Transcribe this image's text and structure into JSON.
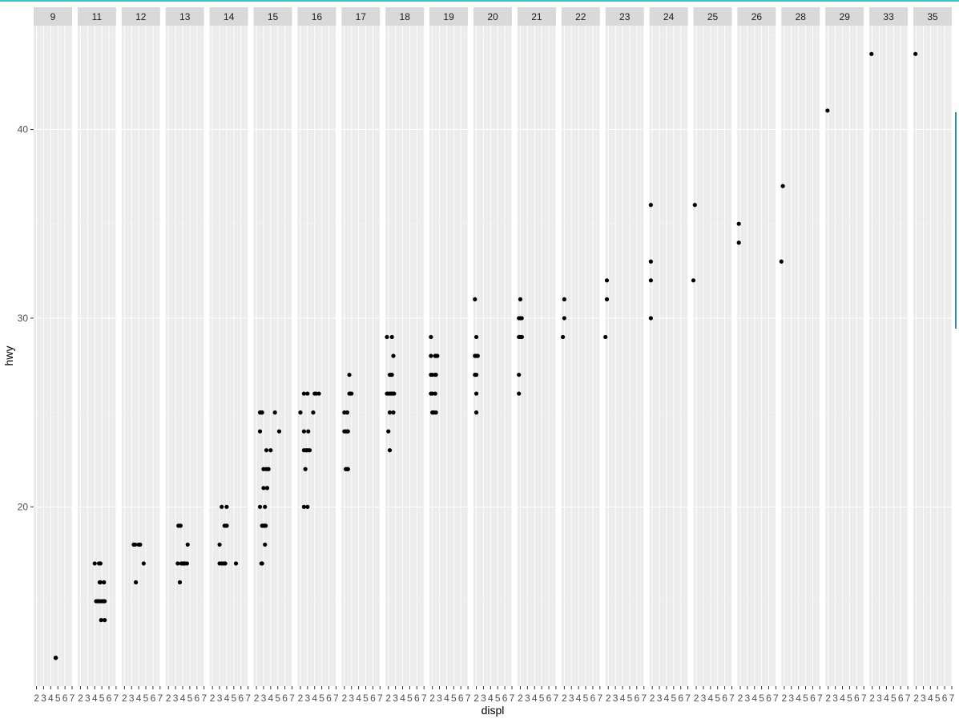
{
  "chart_data": {
    "type": "scatter",
    "facet_by": "cty",
    "xlabel": "displ",
    "ylabel": "hwy",
    "ylim": [
      10.5,
      45.5
    ],
    "xlim": [
      1.6,
      7.0
    ],
    "y_ticks": [
      20,
      30,
      40
    ],
    "x_ticks": [
      2,
      3,
      4,
      5,
      6,
      7
    ],
    "grid": true,
    "panel_background": "#ebebeb",
    "strip_background": "#d9d9d9",
    "point_color": "#000000",
    "facets": [
      {
        "label": "9",
        "points": [
          [
            4.7,
            12
          ],
          [
            4.7,
            12
          ],
          [
            4.7,
            12
          ],
          [
            4.7,
            12
          ],
          [
            4.7,
            12
          ]
        ]
      },
      {
        "label": "11",
        "points": [
          [
            4.0,
            17
          ],
          [
            4.2,
            15
          ],
          [
            4.4,
            15
          ],
          [
            4.6,
            15
          ],
          [
            4.6,
            17
          ],
          [
            4.7,
            16
          ],
          [
            4.7,
            15
          ],
          [
            4.8,
            16
          ],
          [
            4.8,
            17
          ],
          [
            5.0,
            15
          ],
          [
            5.2,
            15
          ],
          [
            5.4,
            15
          ],
          [
            4.9,
            14
          ],
          [
            5.4,
            14
          ],
          [
            5.3,
            16
          ]
        ]
      },
      {
        "label": "12",
        "points": [
          [
            3.3,
            18
          ],
          [
            3.5,
            18
          ],
          [
            3.6,
            16
          ],
          [
            4.0,
            18
          ],
          [
            4.2,
            18
          ],
          [
            4.7,
            17
          ]
        ]
      },
      {
        "label": "13",
        "points": [
          [
            3.3,
            17
          ],
          [
            3.4,
            19
          ],
          [
            3.7,
            19
          ],
          [
            3.8,
            17
          ],
          [
            4.0,
            17
          ],
          [
            3.6,
            16
          ],
          [
            4.2,
            17
          ],
          [
            4.3,
            17
          ],
          [
            4.6,
            17
          ],
          [
            4.7,
            18
          ]
        ]
      },
      {
        "label": "14",
        "points": [
          [
            3.0,
            18
          ],
          [
            3.0,
            17
          ],
          [
            3.3,
            20
          ],
          [
            3.3,
            17
          ],
          [
            3.6,
            17
          ],
          [
            3.7,
            19
          ],
          [
            3.8,
            17
          ],
          [
            4.0,
            19
          ],
          [
            4.0,
            20
          ],
          [
            4.0,
            19
          ],
          [
            5.3,
            17
          ]
        ]
      },
      {
        "label": "15",
        "points": [
          [
            2.5,
            25
          ],
          [
            2.5,
            24
          ],
          [
            2.5,
            20
          ],
          [
            2.7,
            25
          ],
          [
            2.7,
            17
          ],
          [
            2.8,
            19
          ],
          [
            2.8,
            25
          ],
          [
            2.8,
            17
          ],
          [
            3.0,
            19
          ],
          [
            3.0,
            21
          ],
          [
            3.0,
            22
          ],
          [
            3.1,
            19
          ],
          [
            3.2,
            18
          ],
          [
            3.2,
            20
          ],
          [
            3.3,
            19
          ],
          [
            3.4,
            22
          ],
          [
            3.4,
            23
          ],
          [
            3.5,
            21
          ],
          [
            3.5,
            21
          ],
          [
            3.7,
            22
          ],
          [
            4.0,
            23
          ],
          [
            4.6,
            25
          ],
          [
            5.2,
            24
          ]
        ]
      },
      {
        "label": "16",
        "points": [
          [
            2.0,
            25
          ],
          [
            2.5,
            24
          ],
          [
            2.5,
            23
          ],
          [
            2.5,
            26
          ],
          [
            2.5,
            20
          ],
          [
            2.7,
            22
          ],
          [
            2.8,
            23
          ],
          [
            3.0,
            26
          ],
          [
            3.0,
            23
          ],
          [
            3.0,
            20
          ],
          [
            3.1,
            24
          ],
          [
            3.3,
            23
          ],
          [
            3.8,
            25
          ],
          [
            4.0,
            26
          ],
          [
            4.2,
            26
          ],
          [
            4.6,
            26
          ]
        ]
      },
      {
        "label": "17",
        "points": [
          [
            2.0,
            25
          ],
          [
            2.0,
            24
          ],
          [
            2.2,
            24
          ],
          [
            2.2,
            22
          ],
          [
            2.4,
            22
          ],
          [
            2.4,
            24
          ],
          [
            2.4,
            25
          ],
          [
            2.5,
            22
          ],
          [
            2.5,
            24
          ],
          [
            2.7,
            27
          ],
          [
            2.7,
            26
          ],
          [
            2.8,
            26
          ],
          [
            3.0,
            26
          ]
        ]
      },
      {
        "label": "18",
        "points": [
          [
            1.8,
            26
          ],
          [
            1.8,
            29
          ],
          [
            2.0,
            26
          ],
          [
            2.0,
            24
          ],
          [
            2.2,
            26
          ],
          [
            2.2,
            23
          ],
          [
            2.2,
            25
          ],
          [
            2.2,
            27
          ],
          [
            2.4,
            26
          ],
          [
            2.4,
            27
          ],
          [
            2.5,
            29
          ],
          [
            2.5,
            27
          ],
          [
            2.5,
            26
          ],
          [
            2.7,
            26
          ],
          [
            2.7,
            28
          ],
          [
            2.7,
            25
          ],
          [
            2.8,
            26
          ]
        ]
      },
      {
        "label": "19",
        "points": [
          [
            1.8,
            29
          ],
          [
            1.8,
            26
          ],
          [
            1.8,
            27
          ],
          [
            1.8,
            28
          ],
          [
            2.0,
            26
          ],
          [
            2.0,
            27
          ],
          [
            2.0,
            25
          ],
          [
            2.2,
            25
          ],
          [
            2.4,
            27
          ],
          [
            2.4,
            28
          ],
          [
            2.4,
            26
          ],
          [
            2.5,
            28
          ],
          [
            2.5,
            25
          ],
          [
            2.5,
            27
          ],
          [
            2.7,
            28
          ]
        ]
      },
      {
        "label": "20",
        "points": [
          [
            1.8,
            31
          ],
          [
            1.8,
            28
          ],
          [
            1.8,
            27
          ],
          [
            2.0,
            28
          ],
          [
            2.0,
            27
          ],
          [
            2.0,
            29
          ],
          [
            2.0,
            26
          ],
          [
            2.0,
            25
          ],
          [
            2.2,
            28
          ]
        ]
      },
      {
        "label": "21",
        "points": [
          [
            1.8,
            29
          ],
          [
            1.8,
            27
          ],
          [
            1.8,
            26
          ],
          [
            1.8,
            30
          ],
          [
            2.0,
            29
          ],
          [
            2.0,
            31
          ],
          [
            2.0,
            30
          ],
          [
            2.2,
            29
          ],
          [
            2.2,
            30
          ],
          [
            2.2,
            29
          ]
        ]
      },
      {
        "label": "22",
        "points": [
          [
            1.8,
            29
          ],
          [
            2.0,
            31
          ],
          [
            2.0,
            30
          ]
        ]
      },
      {
        "label": "23",
        "points": [
          [
            1.6,
            29
          ],
          [
            1.8,
            32
          ],
          [
            1.8,
            31
          ]
        ]
      },
      {
        "label": "24",
        "points": [
          [
            1.8,
            36
          ],
          [
            1.8,
            33
          ],
          [
            1.8,
            32
          ],
          [
            1.8,
            30
          ]
        ]
      },
      {
        "label": "25",
        "points": [
          [
            1.6,
            32
          ],
          [
            1.8,
            36
          ]
        ]
      },
      {
        "label": "26",
        "points": [
          [
            1.8,
            35
          ],
          [
            1.8,
            34
          ]
        ]
      },
      {
        "label": "28",
        "points": [
          [
            1.6,
            33
          ],
          [
            1.8,
            37
          ]
        ]
      },
      {
        "label": "29",
        "points": [
          [
            1.9,
            41
          ]
        ]
      },
      {
        "label": "33",
        "points": [
          [
            1.9,
            44
          ]
        ]
      },
      {
        "label": "35",
        "points": [
          [
            1.9,
            44
          ]
        ]
      }
    ]
  }
}
